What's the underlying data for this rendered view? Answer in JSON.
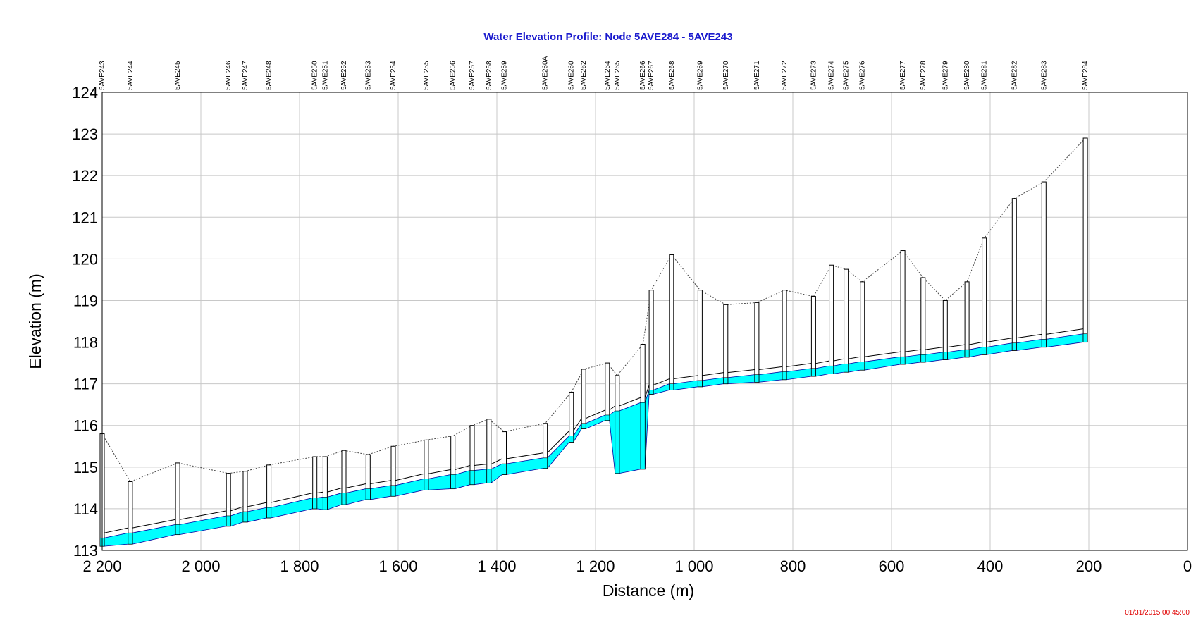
{
  "colors": {
    "title": "#1a1acd",
    "water": "#00ffff",
    "timestamp": "#e00000"
  },
  "timestamp": "01/31/2015 00:45:00",
  "chart_data": {
    "type": "area",
    "title": "Water Elevation Profile:  Node 5AVE284 - 5AVE243",
    "xlabel": "Distance (m)",
    "ylabel": "Elevation (m)",
    "xlim": [
      2200,
      0
    ],
    "ylim": [
      113,
      124
    ],
    "grid": true,
    "x_ticks": [
      2200,
      2000,
      1800,
      1600,
      1400,
      1200,
      1000,
      800,
      600,
      400,
      200,
      0
    ],
    "x_tick_labels": [
      "2 200",
      "2 000",
      "1 800",
      "1 600",
      "1 400",
      "1 200",
      "1 000",
      "800",
      "600",
      "400",
      "200",
      "0"
    ],
    "y_ticks": [
      113,
      114,
      115,
      116,
      117,
      118,
      119,
      120,
      121,
      122,
      123,
      124
    ],
    "nodes": [
      {
        "name": "5AVE243",
        "x": 2200,
        "ground": 115.8,
        "invert": 113.1,
        "water": 113.3
      },
      {
        "name": "5AVE244",
        "x": 2143,
        "ground": 114.65,
        "invert": 113.15,
        "water": 113.42
      },
      {
        "name": "5AVE245",
        "x": 2047,
        "ground": 115.1,
        "invert": 113.38,
        "water": 113.62
      },
      {
        "name": "5AVE246",
        "x": 1944,
        "ground": 114.85,
        "invert": 113.58,
        "water": 113.83
      },
      {
        "name": "5AVE247",
        "x": 1910,
        "ground": 114.9,
        "invert": 113.68,
        "water": 113.93
      },
      {
        "name": "5AVE248",
        "x": 1862,
        "ground": 115.05,
        "invert": 113.78,
        "water": 114.03
      },
      {
        "name": "5AVE250",
        "x": 1769,
        "ground": 115.25,
        "invert": 114.0,
        "water": 114.26
      },
      {
        "name": "5AVE251",
        "x": 1748,
        "ground": 115.25,
        "invert": 113.98,
        "water": 114.28
      },
      {
        "name": "5AVE252",
        "x": 1710,
        "ground": 115.4,
        "invert": 114.1,
        "water": 114.38
      },
      {
        "name": "5AVE253",
        "x": 1661,
        "ground": 115.3,
        "invert": 114.22,
        "water": 114.48
      },
      {
        "name": "5AVE254",
        "x": 1610,
        "ground": 115.5,
        "invert": 114.3,
        "water": 114.56
      },
      {
        "name": "5AVE255",
        "x": 1543,
        "ground": 115.65,
        "invert": 114.45,
        "water": 114.72
      },
      {
        "name": "5AVE256",
        "x": 1489,
        "ground": 115.75,
        "invert": 114.48,
        "water": 114.82
      },
      {
        "name": "5AVE257",
        "x": 1450,
        "ground": 116.0,
        "invert": 114.58,
        "water": 114.92
      },
      {
        "name": "5AVE258",
        "x": 1416,
        "ground": 116.15,
        "invert": 114.62,
        "water": 114.95
      },
      {
        "name": "5AVE259",
        "x": 1385,
        "ground": 115.85,
        "invert": 114.82,
        "water": 115.08
      },
      {
        "name": "5AVE260A",
        "x": 1302,
        "ground": 116.05,
        "invert": 114.97,
        "water": 115.22
      },
      {
        "name": "5AVE260",
        "x": 1249,
        "ground": 116.8,
        "invert": 115.6,
        "water": 115.75
      },
      {
        "name": "5AVE262",
        "x": 1224,
        "ground": 117.35,
        "invert": 115.92,
        "water": 116.05
      },
      {
        "name": "5AVE264",
        "x": 1176,
        "ground": 117.5,
        "invert": 116.12,
        "water": 116.25
      },
      {
        "name": "5AVE265",
        "x": 1156,
        "ground": 117.2,
        "invert": 114.85,
        "water": 116.35
      },
      {
        "name": "5AVE266",
        "x": 1104,
        "ground": 117.95,
        "invert": 114.95,
        "water": 116.55
      },
      {
        "name": "5AVE267",
        "x": 1087,
        "ground": 119.25,
        "invert": 116.75,
        "water": 116.85
      },
      {
        "name": "5AVE268",
        "x": 1046,
        "ground": 120.1,
        "invert": 116.85,
        "water": 117.0
      },
      {
        "name": "5AVE269",
        "x": 988,
        "ground": 119.25,
        "invert": 116.93,
        "water": 117.08
      },
      {
        "name": "5AVE270",
        "x": 936,
        "ground": 118.9,
        "invert": 117.0,
        "water": 117.15
      },
      {
        "name": "5AVE271",
        "x": 873,
        "ground": 118.95,
        "invert": 117.04,
        "water": 117.22
      },
      {
        "name": "5AVE272",
        "x": 817,
        "ground": 119.25,
        "invert": 117.1,
        "water": 117.29
      },
      {
        "name": "5AVE273",
        "x": 758,
        "ground": 119.1,
        "invert": 117.18,
        "water": 117.37
      },
      {
        "name": "5AVE274",
        "x": 722,
        "ground": 119.85,
        "invert": 117.24,
        "water": 117.43
      },
      {
        "name": "5AVE275",
        "x": 692,
        "ground": 119.75,
        "invert": 117.28,
        "water": 117.48
      },
      {
        "name": "5AVE276",
        "x": 659,
        "ground": 119.45,
        "invert": 117.33,
        "water": 117.53
      },
      {
        "name": "5AVE277",
        "x": 577,
        "ground": 120.2,
        "invert": 117.47,
        "water": 117.65
      },
      {
        "name": "5AVE278",
        "x": 536,
        "ground": 119.55,
        "invert": 117.52,
        "water": 117.7
      },
      {
        "name": "5AVE279",
        "x": 491,
        "ground": 119.0,
        "invert": 117.58,
        "water": 117.76
      },
      {
        "name": "5AVE280",
        "x": 447,
        "ground": 119.45,
        "invert": 117.64,
        "water": 117.82
      },
      {
        "name": "5AVE281",
        "x": 412,
        "ground": 120.5,
        "invert": 117.7,
        "water": 117.88
      },
      {
        "name": "5AVE282",
        "x": 351,
        "ground": 121.45,
        "invert": 117.8,
        "water": 117.98
      },
      {
        "name": "5AVE283",
        "x": 291,
        "ground": 121.85,
        "invert": 117.88,
        "water": 118.07
      },
      {
        "name": "5AVE284",
        "x": 207,
        "ground": 122.9,
        "invert": 118.0,
        "water": 118.2
      }
    ]
  }
}
